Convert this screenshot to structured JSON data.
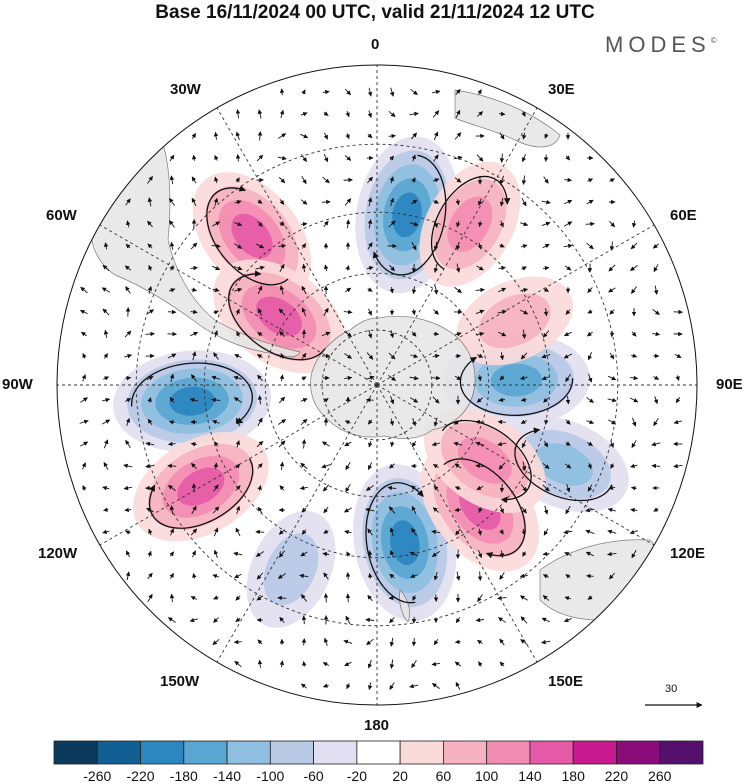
{
  "title": "Base 16/11/2024 00 UTC, valid 21/11/2024 12 UTC",
  "brand": {
    "name": "MODES",
    "mark": "©"
  },
  "map": {
    "projection": "polar-stereographic-south",
    "lon_labels": {
      "lon_0": "0",
      "lon_30e": "30E",
      "lon_60e": "60E",
      "lon_90e": "90E",
      "lon_120e": "120E",
      "lon_150e": "150E",
      "lon_180": "180",
      "lon_150w": "150W",
      "lon_120w": "120W",
      "lon_90w": "90W",
      "lon_60w": "60W",
      "lon_30w": "30W"
    },
    "land_color": "#e8e8e8",
    "graticule": "dashed"
  },
  "reference_vector": {
    "label": "30"
  },
  "colorbar": {
    "colors": [
      "#0b3a5c",
      "#125f93",
      "#2c86c0",
      "#5aa6d2",
      "#8ebfe0",
      "#b8c9e6",
      "#e2e0f0",
      "#ffffff",
      "#fbdada",
      "#f6b2c0",
      "#f28db2",
      "#e65aa8",
      "#c8198f",
      "#8c0b7a",
      "#55106e"
    ],
    "ticks": [
      "-260",
      "-220",
      "-180",
      "-140",
      "-100",
      "-60",
      "-20",
      "20",
      "60",
      "100",
      "140",
      "180",
      "220",
      "260"
    ]
  },
  "anomalies": [
    {
      "sign": "negative",
      "level": 5,
      "lat": -45,
      "lon": 10
    },
    {
      "sign": "negative",
      "level": 5,
      "lat": -42,
      "lon": -95
    },
    {
      "sign": "negative",
      "level": 5,
      "lat": -48,
      "lon": 170
    },
    {
      "sign": "negative",
      "level": 4,
      "lat": -53,
      "lon": 88
    },
    {
      "sign": "negative",
      "level": 3,
      "lat": -38,
      "lon": 113
    },
    {
      "sign": "negative",
      "level": 2,
      "lat": -38,
      "lon": -155
    },
    {
      "sign": "positive",
      "level": 3,
      "lat": -42,
      "lon": 30
    },
    {
      "sign": "positive",
      "level": 4,
      "lat": -40,
      "lon": -40
    },
    {
      "sign": "positive",
      "level": 4,
      "lat": -58,
      "lon": -55
    },
    {
      "sign": "positive",
      "level": 4,
      "lat": -38,
      "lon": -120
    },
    {
      "sign": "positive",
      "level": 4,
      "lat": -48,
      "lon": 140
    },
    {
      "sign": "positive",
      "level": 3,
      "lat": -55,
      "lon": 125
    },
    {
      "sign": "positive",
      "level": 2,
      "lat": -50,
      "lon": 65
    }
  ]
}
